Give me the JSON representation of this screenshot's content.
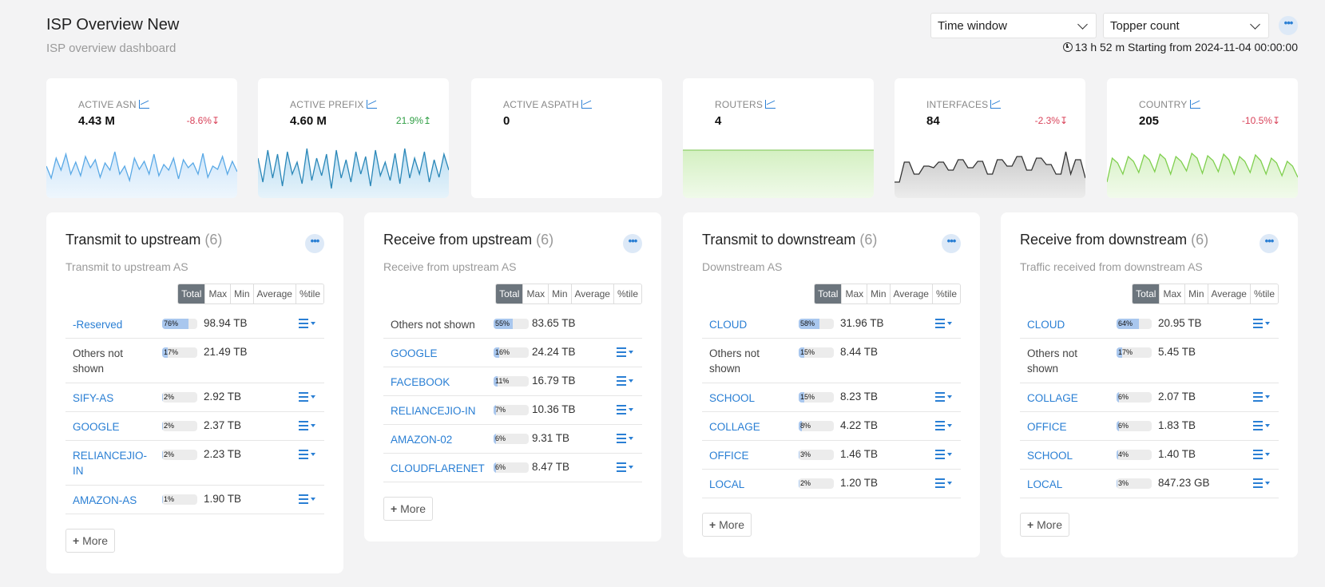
{
  "header": {
    "title": "ISP Overview New",
    "subtitle": "ISP overview dashboard",
    "time_window_select": "Time window",
    "topper_count_select": "Topper count",
    "time_info": "13 h 52 m Starting from 2024-11-04 00:00:00"
  },
  "stats": [
    {
      "label": "ACTIVE ASN",
      "value": "4.43 M",
      "delta": "-8.6%",
      "direction": "down",
      "color": "#5aa9e6",
      "fill": "#cfe6fa"
    },
    {
      "label": "ACTIVE PREFIX",
      "value": "4.60 M",
      "delta": "21.9%",
      "direction": "up",
      "color": "#2a87b8",
      "fill": "#b9ddf2"
    },
    {
      "label": "ACTIVE ASPATH",
      "value": "0",
      "delta": "",
      "direction": "",
      "color": "",
      "fill": ""
    },
    {
      "label": "ROUTERS",
      "value": "4",
      "delta": "",
      "direction": "",
      "color": "#8fce6a",
      "fill": "#d4f0c2"
    },
    {
      "label": "INTERFACES",
      "value": "84",
      "delta": "-2.3%",
      "direction": "down",
      "color": "#333333",
      "fill": "#c9c9c9"
    },
    {
      "label": "COUNTRY",
      "value": "205",
      "delta": "-10.5%",
      "direction": "down",
      "color": "#7fcf4e",
      "fill": "#d9f2c8"
    }
  ],
  "button_group": [
    "Total",
    "Max",
    "Min",
    "Average",
    "%tile"
  ],
  "more_label": "More",
  "panels": [
    {
      "title": "Transmit to upstream",
      "count": "(6)",
      "subtitle": "Transmit to upstream AS",
      "rows": [
        {
          "name": "-Reserved",
          "link": true,
          "pct": "76%",
          "pct_value": 76,
          "value": "98.94 TB",
          "menu": true
        },
        {
          "name": "Others not shown",
          "link": false,
          "pct": "17%",
          "pct_value": 17,
          "value": "21.49 TB",
          "menu": false
        },
        {
          "name": "SIFY-AS",
          "link": true,
          "pct": "2%",
          "pct_value": 2,
          "value": "2.92 TB",
          "menu": true
        },
        {
          "name": "GOOGLE",
          "link": true,
          "pct": "2%",
          "pct_value": 2,
          "value": "2.37 TB",
          "menu": true
        },
        {
          "name": "RELIANCEJIO-IN",
          "link": true,
          "pct": "2%",
          "pct_value": 2,
          "value": "2.23 TB",
          "menu": true
        },
        {
          "name": "AMAZON-AS",
          "link": true,
          "pct": "1%",
          "pct_value": 1,
          "value": "1.90 TB",
          "menu": true
        }
      ]
    },
    {
      "title": "Receive from upstream",
      "count": "(6)",
      "subtitle": "Receive from upstream AS",
      "rows": [
        {
          "name": "Others not shown",
          "link": false,
          "pct": "55%",
          "pct_value": 55,
          "value": "83.65 TB",
          "menu": false
        },
        {
          "name": "GOOGLE",
          "link": true,
          "pct": "16%",
          "pct_value": 16,
          "value": "24.24 TB",
          "menu": true
        },
        {
          "name": "FACEBOOK",
          "link": true,
          "pct": "11%",
          "pct_value": 11,
          "value": "16.79 TB",
          "menu": true
        },
        {
          "name": "RELIANCEJIO-IN",
          "link": true,
          "pct": "7%",
          "pct_value": 7,
          "value": "10.36 TB",
          "menu": true
        },
        {
          "name": "AMAZON-02",
          "link": true,
          "pct": "6%",
          "pct_value": 6,
          "value": "9.31 TB",
          "menu": true
        },
        {
          "name": "CLOUDFLARENET",
          "link": true,
          "pct": "6%",
          "pct_value": 6,
          "value": "8.47 TB",
          "menu": true
        }
      ]
    },
    {
      "title": "Transmit to downstream",
      "count": "(6)",
      "subtitle": "Downstream AS",
      "rows": [
        {
          "name": "CLOUD",
          "link": true,
          "pct": "58%",
          "pct_value": 58,
          "value": "31.96 TB",
          "menu": true
        },
        {
          "name": "Others not shown",
          "link": false,
          "pct": "15%",
          "pct_value": 15,
          "value": "8.44 TB",
          "menu": false
        },
        {
          "name": "SCHOOL",
          "link": true,
          "pct": "15%",
          "pct_value": 15,
          "value": "8.23 TB",
          "menu": true
        },
        {
          "name": "COLLAGE",
          "link": true,
          "pct": "8%",
          "pct_value": 8,
          "value": "4.22 TB",
          "menu": true
        },
        {
          "name": "OFFICE",
          "link": true,
          "pct": "3%",
          "pct_value": 3,
          "value": "1.46 TB",
          "menu": true
        },
        {
          "name": "LOCAL",
          "link": true,
          "pct": "2%",
          "pct_value": 2,
          "value": "1.20 TB",
          "menu": true
        }
      ]
    },
    {
      "title": "Receive from downstream",
      "count": "(6)",
      "subtitle": "Traffic received from downstream AS",
      "rows": [
        {
          "name": "CLOUD",
          "link": true,
          "pct": "64%",
          "pct_value": 64,
          "value": "20.95 TB",
          "menu": true
        },
        {
          "name": "Others not shown",
          "link": false,
          "pct": "17%",
          "pct_value": 17,
          "value": "5.45 TB",
          "menu": false
        },
        {
          "name": "COLLAGE",
          "link": true,
          "pct": "6%",
          "pct_value": 6,
          "value": "2.07 TB",
          "menu": true
        },
        {
          "name": "OFFICE",
          "link": true,
          "pct": "6%",
          "pct_value": 6,
          "value": "1.83 TB",
          "menu": true
        },
        {
          "name": "SCHOOL",
          "link": true,
          "pct": "4%",
          "pct_value": 4,
          "value": "1.40 TB",
          "menu": true
        },
        {
          "name": "LOCAL",
          "link": true,
          "pct": "3%",
          "pct_value": 3,
          "value": "847.23 GB",
          "menu": true
        }
      ]
    }
  ]
}
